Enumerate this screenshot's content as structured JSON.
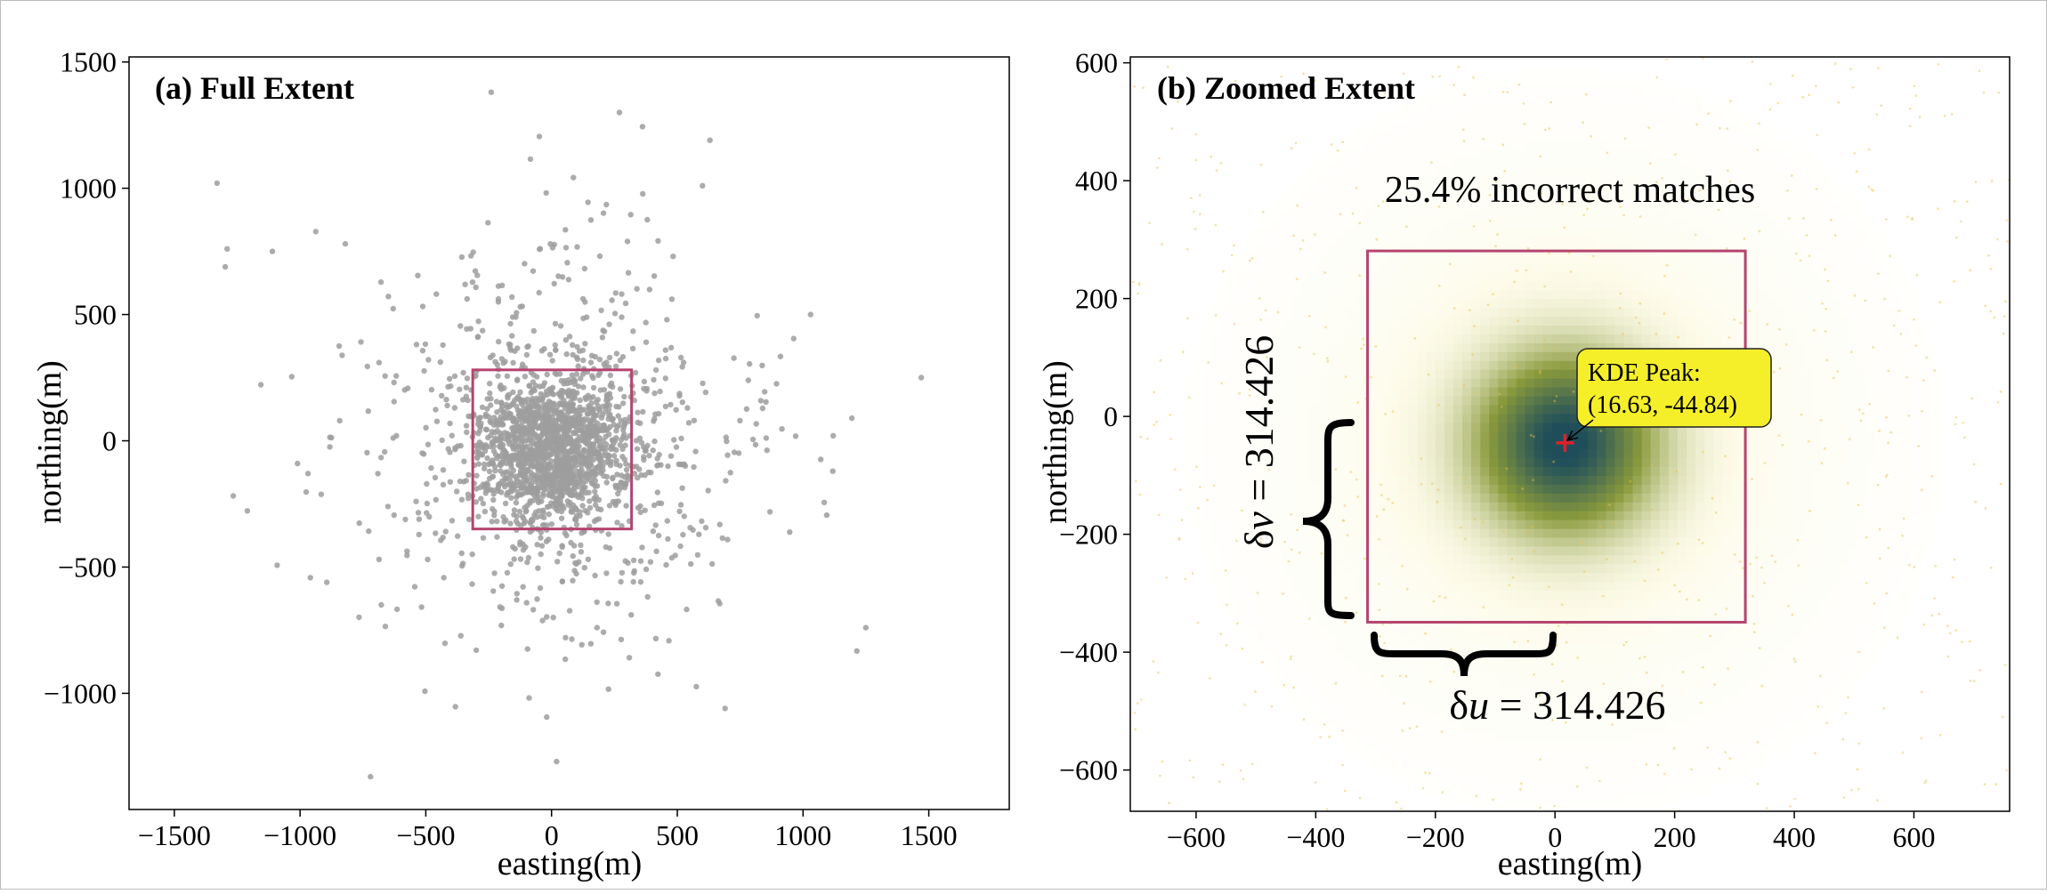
{
  "figure": {
    "colors": {
      "scatter_point": "#9e9e9e",
      "box": "#b5446e",
      "background": "#ffffff",
      "peak_marker": "#e0202a",
      "annotation_fill": "#f5ef2a",
      "density_low": "#fdfbe8",
      "density_mid": "#8a9a3c",
      "density_high": "#1f4e5a",
      "incorrect_dot": "#e8c24a"
    }
  },
  "chart_data": [
    {
      "type": "scatter",
      "panel_label": "(a) Full Extent",
      "xlabel": "easting(m)",
      "ylabel": "northing(m)",
      "xlim": [
        -1680,
        1820
      ],
      "ylim": [
        -1460,
        1520
      ],
      "xticks": [
        -1500,
        -1000,
        -500,
        0,
        500,
        1000,
        1500
      ],
      "xtick_labels": [
        "−1500",
        "−1000",
        "−500",
        "0",
        "500",
        "1000",
        "1500"
      ],
      "yticks": [
        -1000,
        -500,
        0,
        500,
        1000,
        1500
      ],
      "ytick_labels": [
        "−1000",
        "−500",
        "0",
        "500",
        "1000",
        "1500"
      ],
      "grid": false,
      "box": {
        "x": [
          -313.4,
          318.2
        ],
        "y": [
          -349.2,
          280.8
        ]
      },
      "points": {
        "description_count": 2200,
        "core": {
          "n": 1500,
          "center": [
            0,
            -30
          ],
          "sd": [
            150,
            150
          ]
        },
        "spread": {
          "n": 650,
          "center": [
            0,
            -30
          ],
          "sd": [
            420,
            420
          ]
        },
        "outliers": [
          [
            -1330,
            1020
          ],
          [
            -1290,
            760
          ],
          [
            -1110,
            750
          ],
          [
            -240,
            1380
          ],
          [
            270,
            1300
          ],
          [
            630,
            1190
          ],
          [
            1470,
            250
          ],
          [
            -1010,
            -90
          ],
          [
            1250,
            -740
          ],
          [
            -720,
            -1330
          ],
          [
            20,
            -1270
          ],
          [
            1120,
            20
          ],
          [
            1030,
            500
          ],
          [
            -820,
            780
          ],
          [
            600,
            1010
          ]
        ]
      }
    },
    {
      "type": "heatmap",
      "panel_label": "(b) Zoomed Extent",
      "xlabel": "easting(m)",
      "ylabel": "northing(m)",
      "xlim": [
        -710,
        760
      ],
      "ylim": [
        -670,
        610
      ],
      "xticks": [
        -600,
        -400,
        -200,
        0,
        200,
        400,
        600
      ],
      "xtick_labels": [
        "−600",
        "−400",
        "−200",
        "0",
        "200",
        "400",
        "600"
      ],
      "yticks": [
        -600,
        -400,
        -200,
        0,
        200,
        400,
        600
      ],
      "ytick_labels": [
        "−600",
        "−400",
        "−200",
        "0",
        "200",
        "400",
        "600"
      ],
      "grid": false,
      "incorrect_text": "25.4% incorrect matches",
      "box": {
        "x": [
          -313.4,
          318.2
        ],
        "y": [
          -349.2,
          280.8
        ]
      },
      "kde_peak": {
        "x": 16.63,
        "y": -44.84,
        "label_line1": "KDE Peak:",
        "label_line2": "(16.63, -44.84)"
      },
      "density": {
        "center": [
          16.63,
          -44.84
        ],
        "sd": [
          95,
          95
        ],
        "cell": 15
      },
      "delta_u": {
        "greek": "δ",
        "symbol": "u",
        "rest": " = 314.426"
      },
      "delta_v": {
        "greek": "δ",
        "symbol": "v",
        "rest": " = 314.426"
      }
    }
  ]
}
